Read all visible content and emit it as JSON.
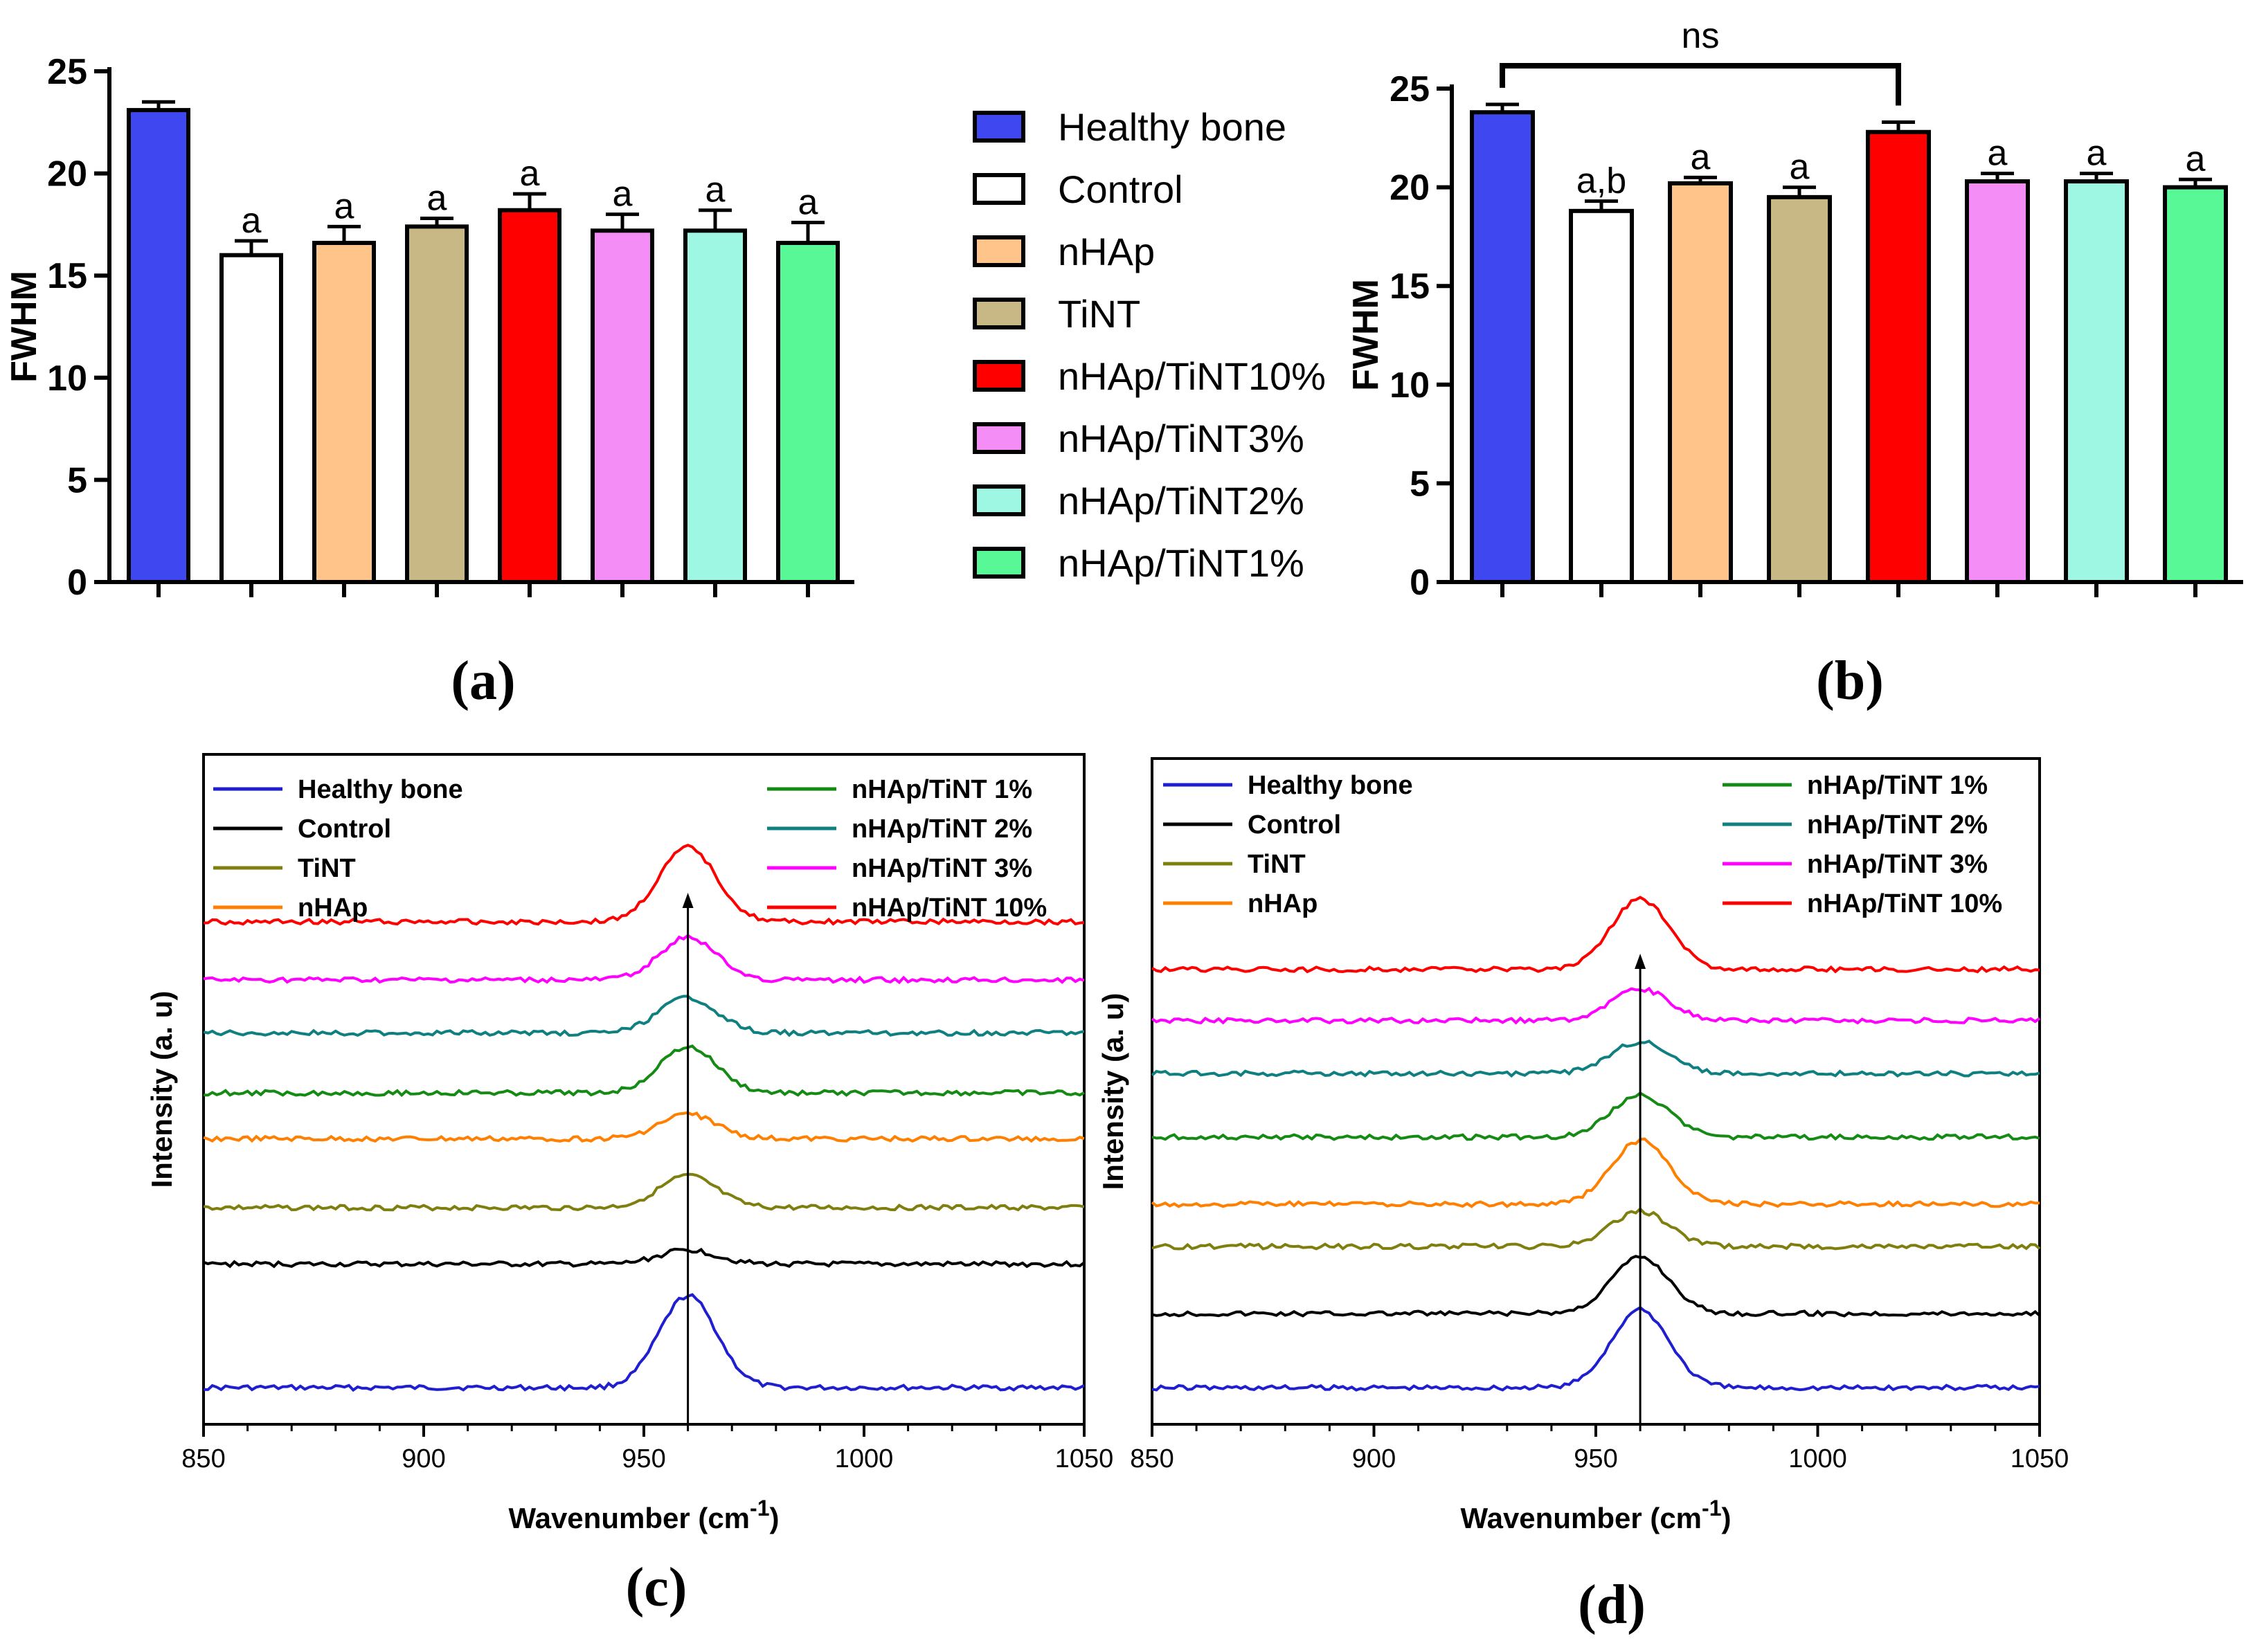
{
  "figure": {
    "panels": [
      "(a)",
      "(b)",
      "(c)",
      "(d)"
    ]
  },
  "chart_data": [
    {
      "id": "a",
      "type": "bar",
      "ylabel": "FWHM",
      "ylim": [
        0,
        25
      ],
      "yticks": [
        "0",
        "5",
        "10",
        "15",
        "20",
        "25"
      ],
      "categories": [
        "Healthy bone",
        "Control",
        "nHAp",
        "TiNT",
        "nHAp/TiNT10%",
        "nHAp/TiNT3%",
        "nHAp/TiNT2%",
        "nHAp/TiNT1%"
      ],
      "values": [
        23.1,
        16.0,
        16.6,
        17.4,
        18.2,
        17.2,
        17.2,
        16.6
      ],
      "errors": [
        0.4,
        0.7,
        0.8,
        0.4,
        0.8,
        0.8,
        1.0,
        1.0
      ],
      "annotations": [
        "",
        "a",
        "a",
        "a",
        "a",
        "a",
        "a",
        "a"
      ],
      "colors": [
        "#3f48f0",
        "#ffffff",
        "#ffc489",
        "#c8b886",
        "#ff0000",
        "#f48df5",
        "#9ef7e3",
        "#57f895"
      ],
      "legend": {
        "position": "right",
        "entries": [
          "Healthy bone",
          "Control",
          "nHAp",
          "TiNT",
          "nHAp/TiNT10%",
          "nHAp/TiNT3%",
          "nHAp/TiNT2%",
          "nHAp/TiNT1%"
        ]
      }
    },
    {
      "id": "b",
      "type": "bar",
      "ylabel": "FWHM",
      "ylim": [
        0,
        25
      ],
      "yticks": [
        "0",
        "5",
        "10",
        "15",
        "20",
        "25"
      ],
      "categories": [
        "Healthy bone",
        "Control",
        "nHAp",
        "TiNT",
        "nHAp/TiNT10%",
        "nHAp/TiNT3%",
        "nHAp/TiNT2%",
        "nHAp/TiNT1%"
      ],
      "values": [
        23.8,
        18.8,
        20.2,
        19.5,
        22.8,
        20.3,
        20.3,
        20.0
      ],
      "errors": [
        0.4,
        0.5,
        0.3,
        0.5,
        0.5,
        0.4,
        0.4,
        0.4
      ],
      "annotations": [
        "",
        "a,b",
        "a",
        "a",
        "",
        "a",
        "a",
        "a"
      ],
      "colors": [
        "#3f48f0",
        "#ffffff",
        "#ffc489",
        "#c8b886",
        "#ff0000",
        "#f48df5",
        "#9ef7e3",
        "#57f895"
      ],
      "significance": {
        "from": 0,
        "to": 4,
        "label": "ns"
      }
    },
    {
      "id": "c",
      "type": "line",
      "xlabel": "Wavenumber (cm-1)",
      "xlabel_main": "Wavenumber (cm",
      "xlabel_sup": "-1",
      "xlabel_close": ")",
      "ylabel": "Intensity (a. u)",
      "xlim": [
        850,
        1050
      ],
      "xticks": [
        "850",
        "900",
        "950",
        "1000",
        "1050"
      ],
      "marker_line_x": 960,
      "series": [
        {
          "name": "Healthy bone",
          "color": "#1f1fcf",
          "offset": 0,
          "peak": 52
        },
        {
          "name": "Control",
          "color": "#000000",
          "offset": 70,
          "peak": 8
        },
        {
          "name": "TiNT",
          "color": "#7f7f10",
          "offset": 102,
          "peak": 18
        },
        {
          "name": "nHAp",
          "color": "#ff7f00",
          "offset": 141,
          "peak": 14
        },
        {
          "name": "nHAp/TiNT 1%",
          "color": "#158a15",
          "offset": 167,
          "peak": 26
        },
        {
          "name": "nHAp/TiNT 2%",
          "color": "#0f7f7f",
          "offset": 201,
          "peak": 20
        },
        {
          "name": "nHAp/TiNT 3%",
          "color": "#ff00ff",
          "offset": 231,
          "peak": 24
        },
        {
          "name": "nHAp/TiNT 10%",
          "color": "#ff0000",
          "offset": 264,
          "peak": 42
        }
      ],
      "legend_left": [
        "Healthy bone",
        "Control",
        "TiNT",
        "nHAp"
      ],
      "legend_right": [
        "nHAp/TiNT 1%",
        "nHAp/TiNT 2%",
        "nHAp/TiNT 3%",
        "nHAp/TiNT 10%"
      ]
    },
    {
      "id": "d",
      "type": "line",
      "xlabel": "Wavenumber (cm-1)",
      "xlabel_main": "Wavenumber (cm",
      "xlabel_sup": "-1",
      "xlabel_close": ")",
      "ylabel": "Intensity (a. u)",
      "xlim": [
        850,
        1050
      ],
      "xticks": [
        "850",
        "900",
        "950",
        "1000",
        "1050"
      ],
      "marker_line_x": 960,
      "series": [
        {
          "name": "Healthy bone",
          "color": "#1f1fcf",
          "offset": 0,
          "peak": 44
        },
        {
          "name": "Control",
          "color": "#000000",
          "offset": 42,
          "peak": 32
        },
        {
          "name": "TiNT",
          "color": "#7f7f10",
          "offset": 80,
          "peak": 20
        },
        {
          "name": "nHAp",
          "color": "#ff7f00",
          "offset": 104,
          "peak": 36
        },
        {
          "name": "nHAp/TiNT 1%",
          "color": "#158a15",
          "offset": 142,
          "peak": 24
        },
        {
          "name": "nHAp/TiNT 2%",
          "color": "#0f7f7f",
          "offset": 178,
          "peak": 18
        },
        {
          "name": "nHAp/TiNT 3%",
          "color": "#ff00ff",
          "offset": 208,
          "peak": 18
        },
        {
          "name": "nHAp/TiNT 10%",
          "color": "#ff0000",
          "offset": 237,
          "peak": 40
        }
      ],
      "legend_left": [
        "Healthy bone",
        "Control",
        "TiNT",
        "nHAp"
      ],
      "legend_right": [
        "nHAp/TiNT 1%",
        "nHAp/TiNT 2%",
        "nHAp/TiNT 3%",
        "nHAp/TiNT 10%"
      ]
    }
  ]
}
